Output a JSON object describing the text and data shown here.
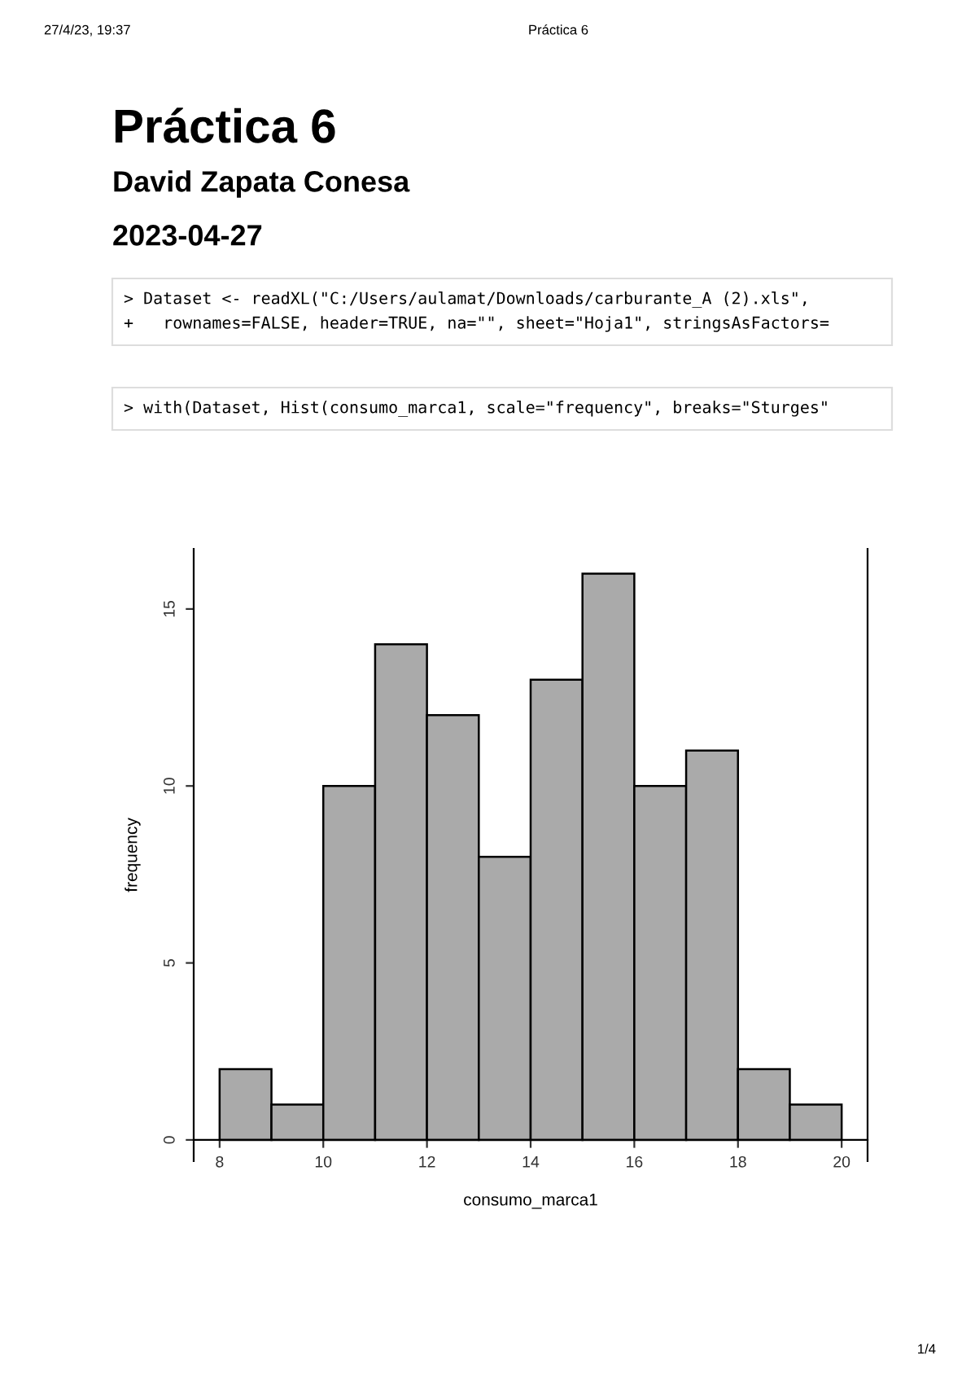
{
  "chart_data": {
    "type": "histogram",
    "title": "Práctica 6",
    "subtitle": "David Zapata Conesa",
    "xlabel": "consumo_marca1",
    "ylabel": "frequency",
    "bins": [
      8,
      9,
      10,
      11,
      12,
      13,
      14,
      15,
      16,
      17,
      18,
      19,
      20
    ],
    "values": [
      2,
      1,
      10,
      14,
      12,
      8,
      13,
      16,
      10,
      11,
      2,
      1
    ],
    "color": "#aaaaaa",
    "xlim": [
      7.5,
      20.5
    ],
    "xticks": [
      8,
      10,
      12,
      14,
      16,
      18,
      20
    ],
    "ylim": [
      -0.6,
      16.7
    ],
    "yticks": [
      0,
      5,
      10,
      15
    ],
    "grid": false,
    "legend": false,
    "annotations": [
      "27/4/23, 19:37",
      "Práctica 6",
      "2023-04-27",
      "> Dataset <- readXL(\"C:/Users/aulamat/Downloads/carburante_A (2).xls\",",
      "+   rownames=FALSE, header=TRUE, na=\"\", sheet=\"Hoja1\", stringsAsFactors=",
      "> with(Dataset, Hist(consumo_marca1, scale=\"frequency\", breaks=\"Sturges\"",
      "1/4"
    ]
  }
}
